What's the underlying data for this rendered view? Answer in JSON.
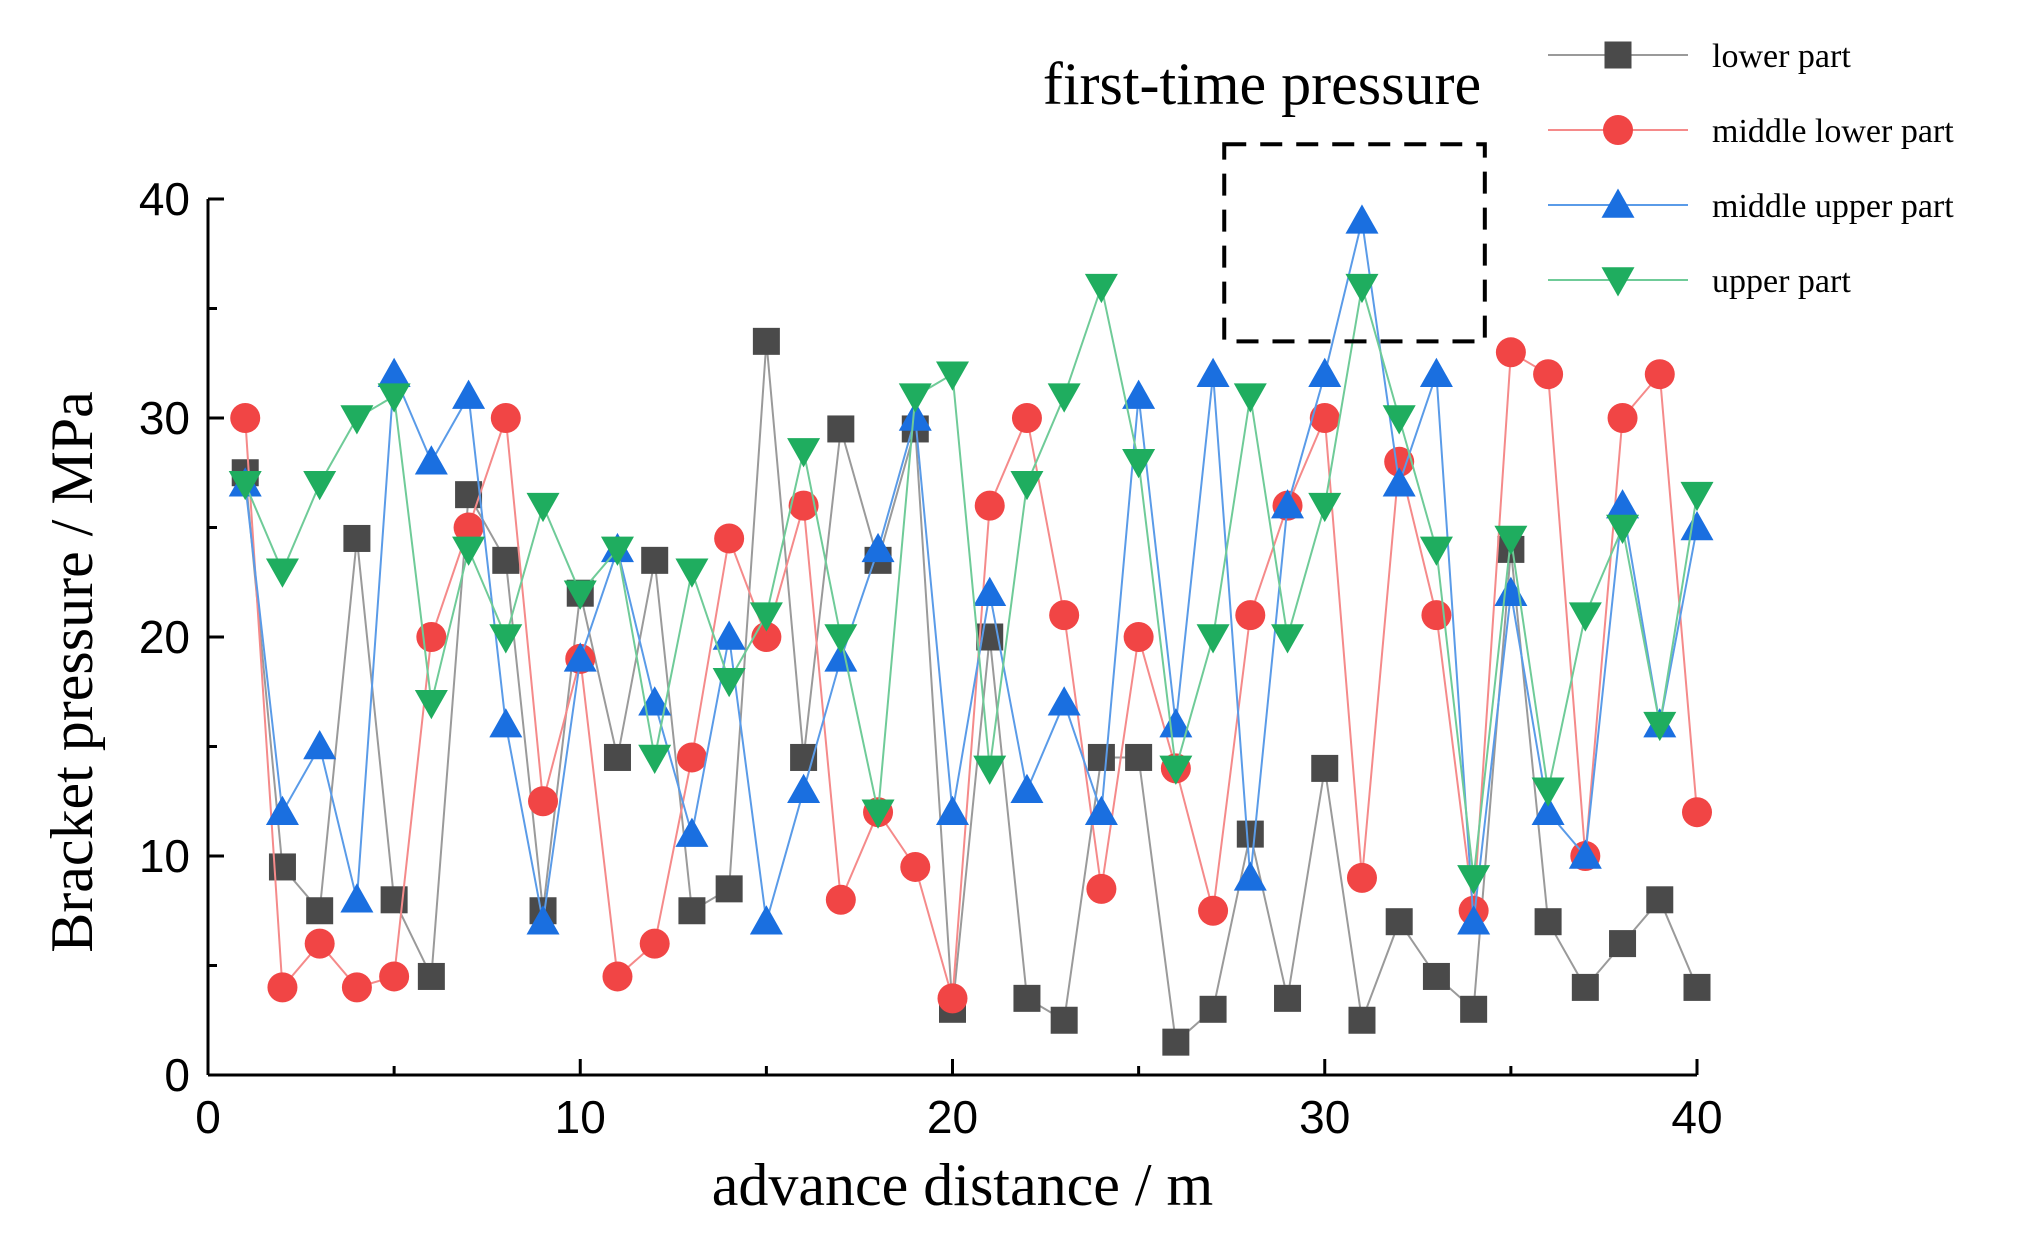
{
  "chart_data": {
    "type": "line",
    "title": "",
    "xlabel": "advance distance / m",
    "ylabel": "Bracket pressure / MPa",
    "xlim": [
      0,
      40
    ],
    "ylim": [
      0,
      40
    ],
    "xticks": [
      0,
      10,
      20,
      30,
      40
    ],
    "yticks": [
      0,
      10,
      20,
      30,
      40
    ],
    "grid": false,
    "legend_position": "top-right",
    "x": [
      1,
      2,
      3,
      4,
      5,
      6,
      7,
      8,
      9,
      10,
      11,
      12,
      13,
      14,
      15,
      16,
      17,
      18,
      19,
      20,
      21,
      22,
      23,
      24,
      25,
      26,
      27,
      28,
      29,
      30,
      31,
      32,
      33,
      34,
      35,
      36,
      37,
      38,
      39,
      40
    ],
    "series": [
      {
        "name": "lower part",
        "color": "#4a4a4a",
        "line_color": "#9a9a9a",
        "marker": "square",
        "values": [
          27.5,
          9.5,
          7.5,
          24.5,
          8,
          4.5,
          26.5,
          23.5,
          7.5,
          22,
          14.5,
          23.5,
          7.5,
          8.5,
          33.5,
          14.5,
          29.5,
          23.5,
          29.5,
          3,
          20,
          3.5,
          2.5,
          14.5,
          14.5,
          1.5,
          3,
          11,
          3.5,
          14,
          2.5,
          7,
          4.5,
          3,
          24,
          7,
          4,
          6,
          8,
          4
        ]
      },
      {
        "name": "middle lower part",
        "color": "#f14545",
        "line_color": "#f58a8a",
        "marker": "circle",
        "values": [
          30,
          4,
          6,
          4,
          4.5,
          20,
          25,
          30,
          12.5,
          19,
          4.5,
          6,
          14.5,
          24.5,
          20,
          26,
          8,
          12,
          9.5,
          3.5,
          26,
          30,
          21,
          8.5,
          20,
          14,
          7.5,
          21,
          26,
          30,
          9,
          28,
          21,
          7.5,
          33,
          32,
          10,
          30,
          32,
          12
        ]
      },
      {
        "name": "middle upper part",
        "color": "#1a6fe0",
        "line_color": "#5a9be8",
        "marker": "triangle-up",
        "values": [
          27,
          12,
          15,
          8,
          32,
          28,
          31,
          16,
          7,
          19,
          24,
          17,
          11,
          20,
          7,
          13,
          19,
          24,
          30,
          12,
          22,
          13,
          17,
          12,
          31,
          16,
          32,
          9,
          26,
          32,
          39,
          27,
          32,
          7,
          22,
          12,
          10,
          26,
          16,
          25
        ]
      },
      {
        "name": "upper part",
        "color": "#1fad5f",
        "line_color": "#6fcb98",
        "marker": "triangle-down",
        "values": [
          27,
          23,
          27,
          30,
          31,
          17,
          24,
          20,
          26,
          22,
          24,
          14.5,
          23,
          18,
          21,
          28.5,
          20,
          12,
          31,
          32,
          14,
          27,
          31,
          36,
          28,
          14,
          20,
          31,
          20,
          26,
          36,
          30,
          24,
          9,
          24.5,
          13,
          21,
          25,
          16,
          26.5
        ]
      }
    ],
    "annotation": {
      "label": "first-time pressure",
      "x_range": [
        27.3,
        34.3
      ],
      "y_range": [
        33.5,
        42.5
      ]
    }
  }
}
